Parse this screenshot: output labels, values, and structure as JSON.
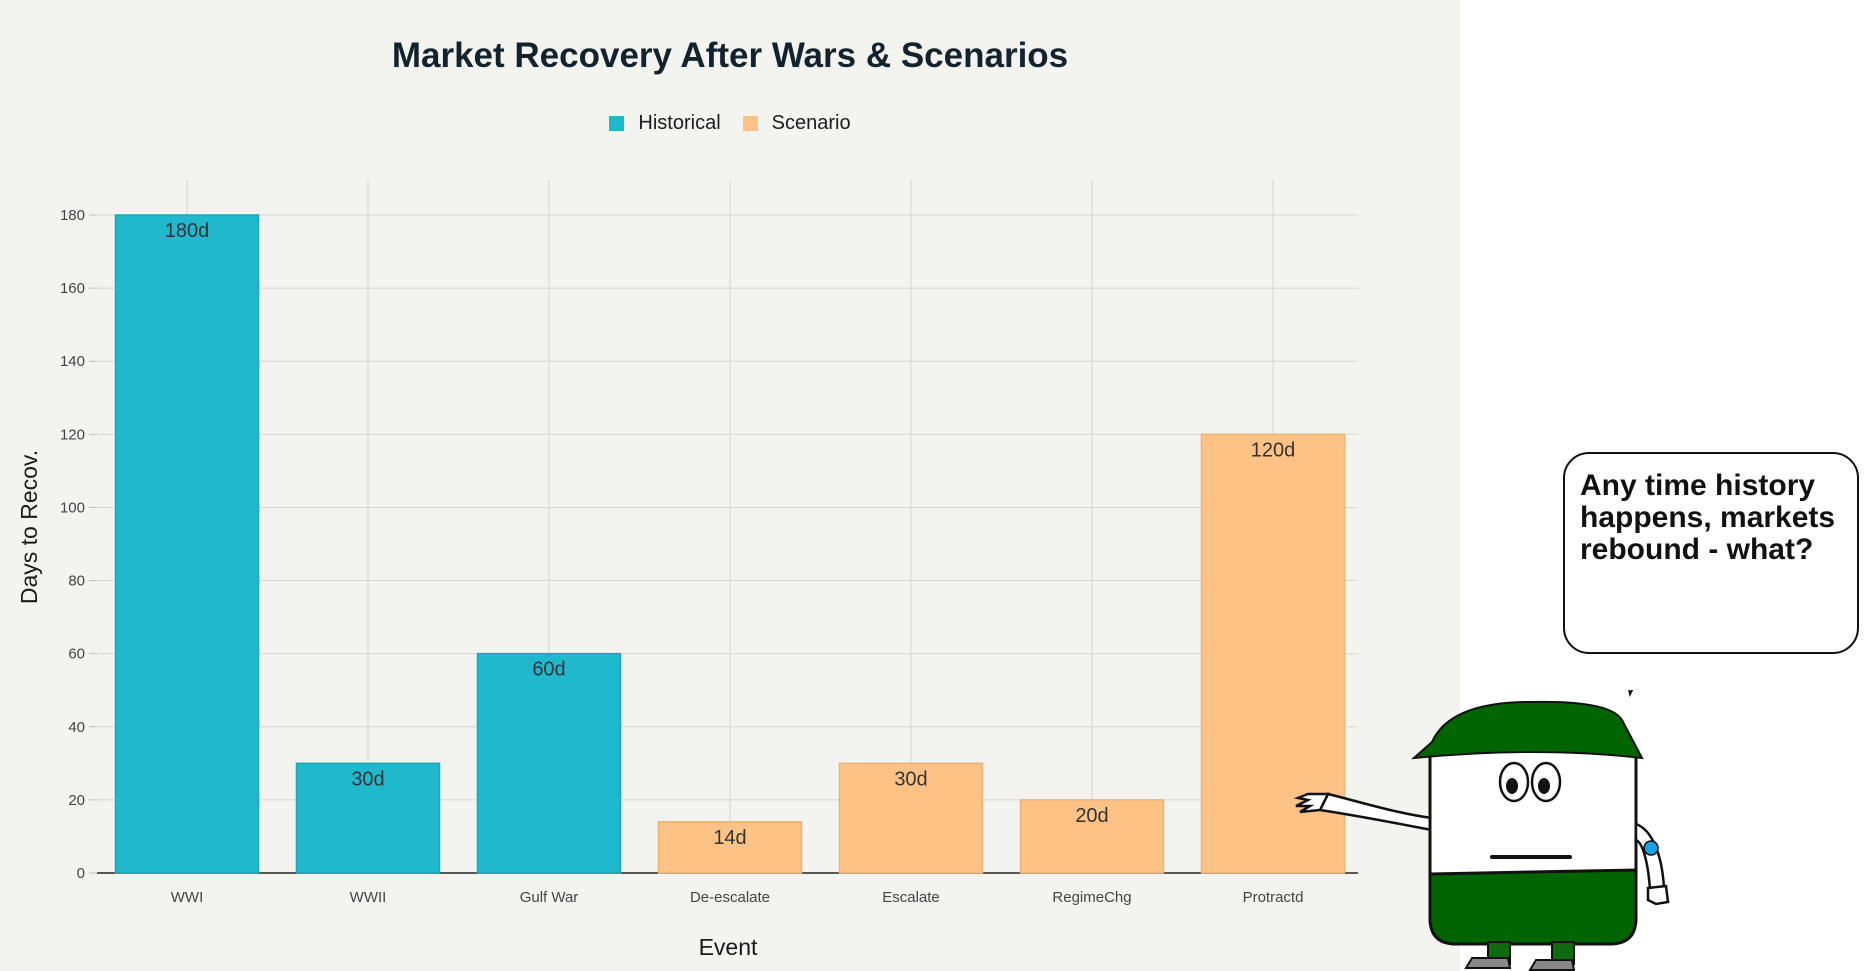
{
  "chart_data": {
    "type": "bar",
    "title": "Market Recovery After Wars & Scenarios",
    "xlabel": "Event",
    "ylabel": "Days to Recov.",
    "categories": [
      "WWI",
      "WWII",
      "Gulf War",
      "De-escalate",
      "Escalate",
      "RegimeChg",
      "Protractd"
    ],
    "values": [
      180,
      30,
      60,
      14,
      30,
      20,
      120
    ],
    "data_labels": [
      "180d",
      "30d",
      "60d",
      "14d",
      "30d",
      "20d",
      "120d"
    ],
    "groups": [
      "Historical",
      "Historical",
      "Historical",
      "Scenario",
      "Scenario",
      "Scenario",
      "Scenario"
    ],
    "legend": [
      {
        "name": "Historical",
        "color": "#20b8cd"
      },
      {
        "name": "Scenario",
        "color": "#ffc285"
      }
    ],
    "legend_position": "top-center",
    "ylim": [
      0,
      190
    ],
    "yticks": [
      0,
      20,
      40,
      60,
      80,
      100,
      120,
      140,
      160,
      180
    ],
    "grid": true
  },
  "callout": {
    "text": "Any time history happens, markets rebound - what?"
  },
  "mascot": {
    "icon": "green-hat-character-icon",
    "hat_color": "#006400"
  }
}
